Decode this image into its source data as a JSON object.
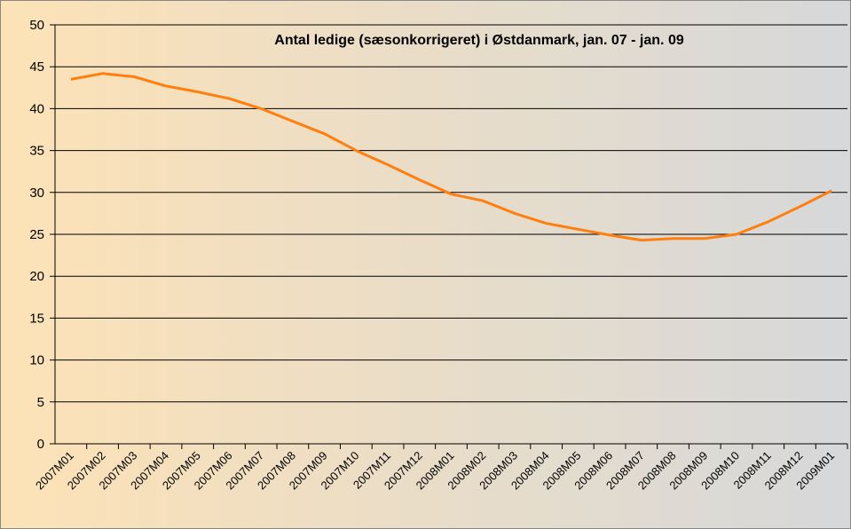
{
  "chart_data": {
    "type": "line",
    "title": "Antal ledige (sæsonkorrigeret) i Østdanmark, jan. 07 - jan. 09",
    "categories": [
      "2007M01",
      "2007M02",
      "2007M03",
      "2007M04",
      "2007M05",
      "2007M06",
      "2007M07",
      "2007M08",
      "2007M09",
      "2007M10",
      "2007M11",
      "2007M12",
      "2008M01",
      "2008M02",
      "2008M03",
      "2008M04",
      "2008M05",
      "2008M06",
      "2008M07",
      "2008M08",
      "2008M09",
      "2008M10",
      "2008M11",
      "2008M12",
      "2009M01"
    ],
    "series": [
      {
        "color": "#ff7f0e",
        "values": [
          43.5,
          44.2,
          43.8,
          42.7,
          42.0,
          41.2,
          40.0,
          38.5,
          37.0,
          35.0,
          33.3,
          31.5,
          29.8,
          29.0,
          27.5,
          26.3,
          25.6,
          24.9,
          24.3,
          24.5,
          24.5,
          25.0,
          26.5,
          28.3,
          30.2
        ]
      }
    ],
    "ylim": [
      0,
      50
    ],
    "yticks": [
      0,
      5,
      10,
      15,
      20,
      25,
      30,
      35,
      40,
      45,
      50
    ],
    "grid": true
  }
}
